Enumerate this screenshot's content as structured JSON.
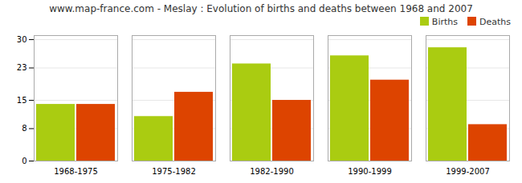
{
  "chart_data": {
    "type": "bar",
    "title": "www.map-france.com - Meslay : Evolution of births and deaths between 1968 and 2007",
    "categories": [
      "1968-1975",
      "1975-1982",
      "1982-1990",
      "1990-1999",
      "1999-2007"
    ],
    "series": [
      {
        "name": "Births",
        "color": "#aacc11",
        "values": [
          14,
          11,
          24,
          26,
          28
        ]
      },
      {
        "name": "Deaths",
        "color": "#dd4400",
        "values": [
          14,
          17,
          15,
          20,
          9
        ]
      }
    ],
    "ylim": [
      0,
      31
    ],
    "yticks": [
      0,
      8,
      15,
      23,
      30
    ],
    "grid": true,
    "legend": "upper right"
  }
}
